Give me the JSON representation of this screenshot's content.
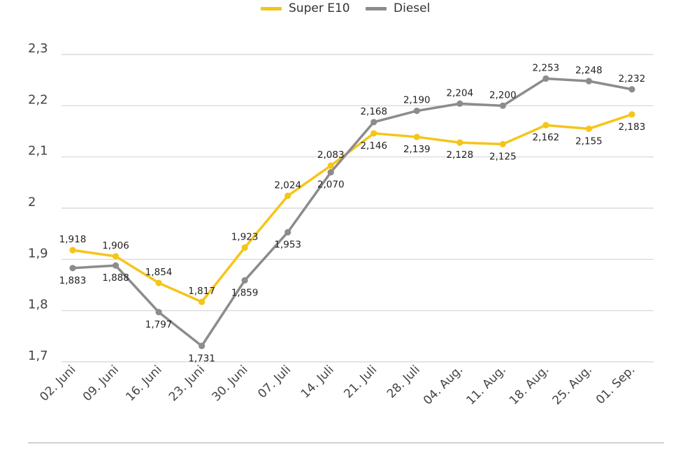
{
  "chart_data": {
    "type": "line",
    "categories": [
      "02. Juni",
      "09. Juni",
      "16. Juni",
      "23. Juni",
      "30. Juni",
      "07. Juli",
      "14. Juli",
      "21. Juli",
      "28. Juli",
      "04. Aug.",
      "11. Aug.",
      "18. Aug.",
      "25. Aug.",
      "01. Sep."
    ],
    "series": [
      {
        "name": "Super E10",
        "color": "#f5c518",
        "values": [
          1.918,
          1.906,
          1.854,
          1.817,
          1.923,
          2.024,
          2.083,
          2.146,
          2.139,
          2.128,
          2.125,
          2.162,
          2.155,
          2.183
        ],
        "labels": [
          "1,918",
          "1,906",
          "1,854",
          "1,817",
          "1,923",
          "2,024",
          "2,083",
          "2,146",
          "2,139",
          "2,128",
          "2,125",
          "2,162",
          "2,155",
          "2,183"
        ]
      },
      {
        "name": "Diesel",
        "color": "#8c8c8c",
        "values": [
          1.883,
          1.888,
          1.797,
          1.731,
          1.859,
          1.953,
          2.07,
          2.168,
          2.19,
          2.204,
          2.2,
          2.253,
          2.248,
          2.232
        ],
        "labels": [
          "1,883",
          "1,888",
          "1,797",
          "1,731",
          "1,859",
          "1,953",
          "2,070",
          "2,168",
          "2,190",
          "2,204",
          "2,200",
          "2,253",
          "2,248",
          "2,232"
        ]
      }
    ],
    "ylim": [
      1.7,
      2.3
    ],
    "yticks": [
      1.7,
      1.8,
      1.9,
      2.0,
      2.1,
      2.2,
      2.3
    ],
    "ytick_labels": [
      "1,7",
      "1,8",
      "1,9",
      "2",
      "2,1",
      "2,2",
      "2,3"
    ],
    "grid": true,
    "legend_position": "top-center",
    "title": "",
    "xlabel": "",
    "ylabel": ""
  },
  "legend": {
    "items": [
      "Super E10",
      "Diesel"
    ]
  }
}
